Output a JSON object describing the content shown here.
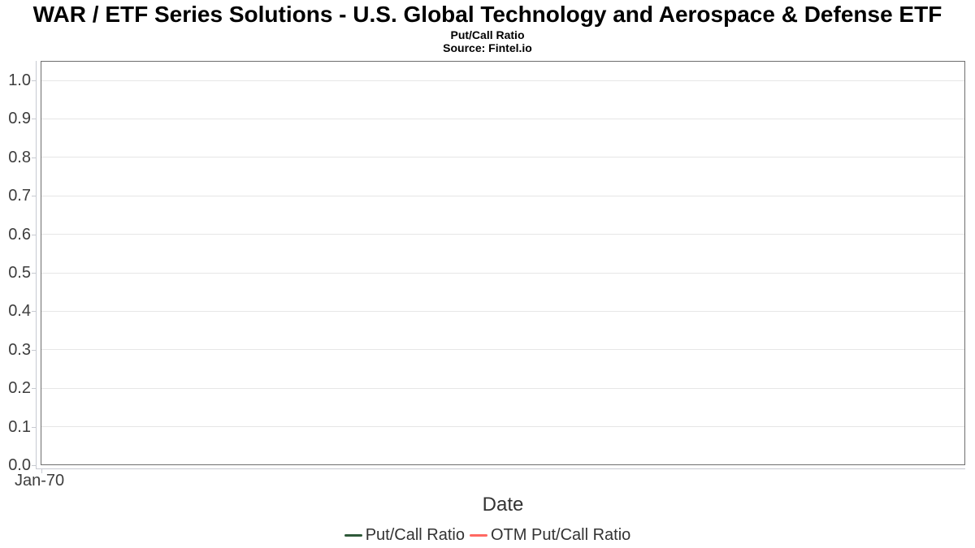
{
  "chart_data": {
    "type": "line",
    "title": "WAR / ETF Series Solutions - U.S. Global Technology and Aerospace & Defense ETF",
    "subtitle": "Put/Call Ratio",
    "source": "Source: Fintel.io",
    "xlabel": "Date",
    "ylabel": "",
    "x_tick_labels": [
      "Jan-70"
    ],
    "y_tick_labels": [
      "0.0",
      "0.1",
      "0.2",
      "0.3",
      "0.4",
      "0.5",
      "0.6",
      "0.7",
      "0.8",
      "0.9",
      "1.0"
    ],
    "ylim": [
      0,
      1.05
    ],
    "grid": true,
    "legend_position": "bottom-center",
    "series": [
      {
        "name": "Put/Call Ratio",
        "color": "#2e5939",
        "x": [],
        "values": []
      },
      {
        "name": "OTM Put/Call Ratio",
        "color": "#ff6962",
        "x": [],
        "values": []
      }
    ],
    "colors": {
      "background": "#ffffff",
      "gridline": "#e6e6e6",
      "axis_line": "#c7cad1",
      "plot_border": "#6e6e6e",
      "tick_label": "#3d3d3d",
      "axis_title": "#333333",
      "title": "#000000"
    }
  }
}
